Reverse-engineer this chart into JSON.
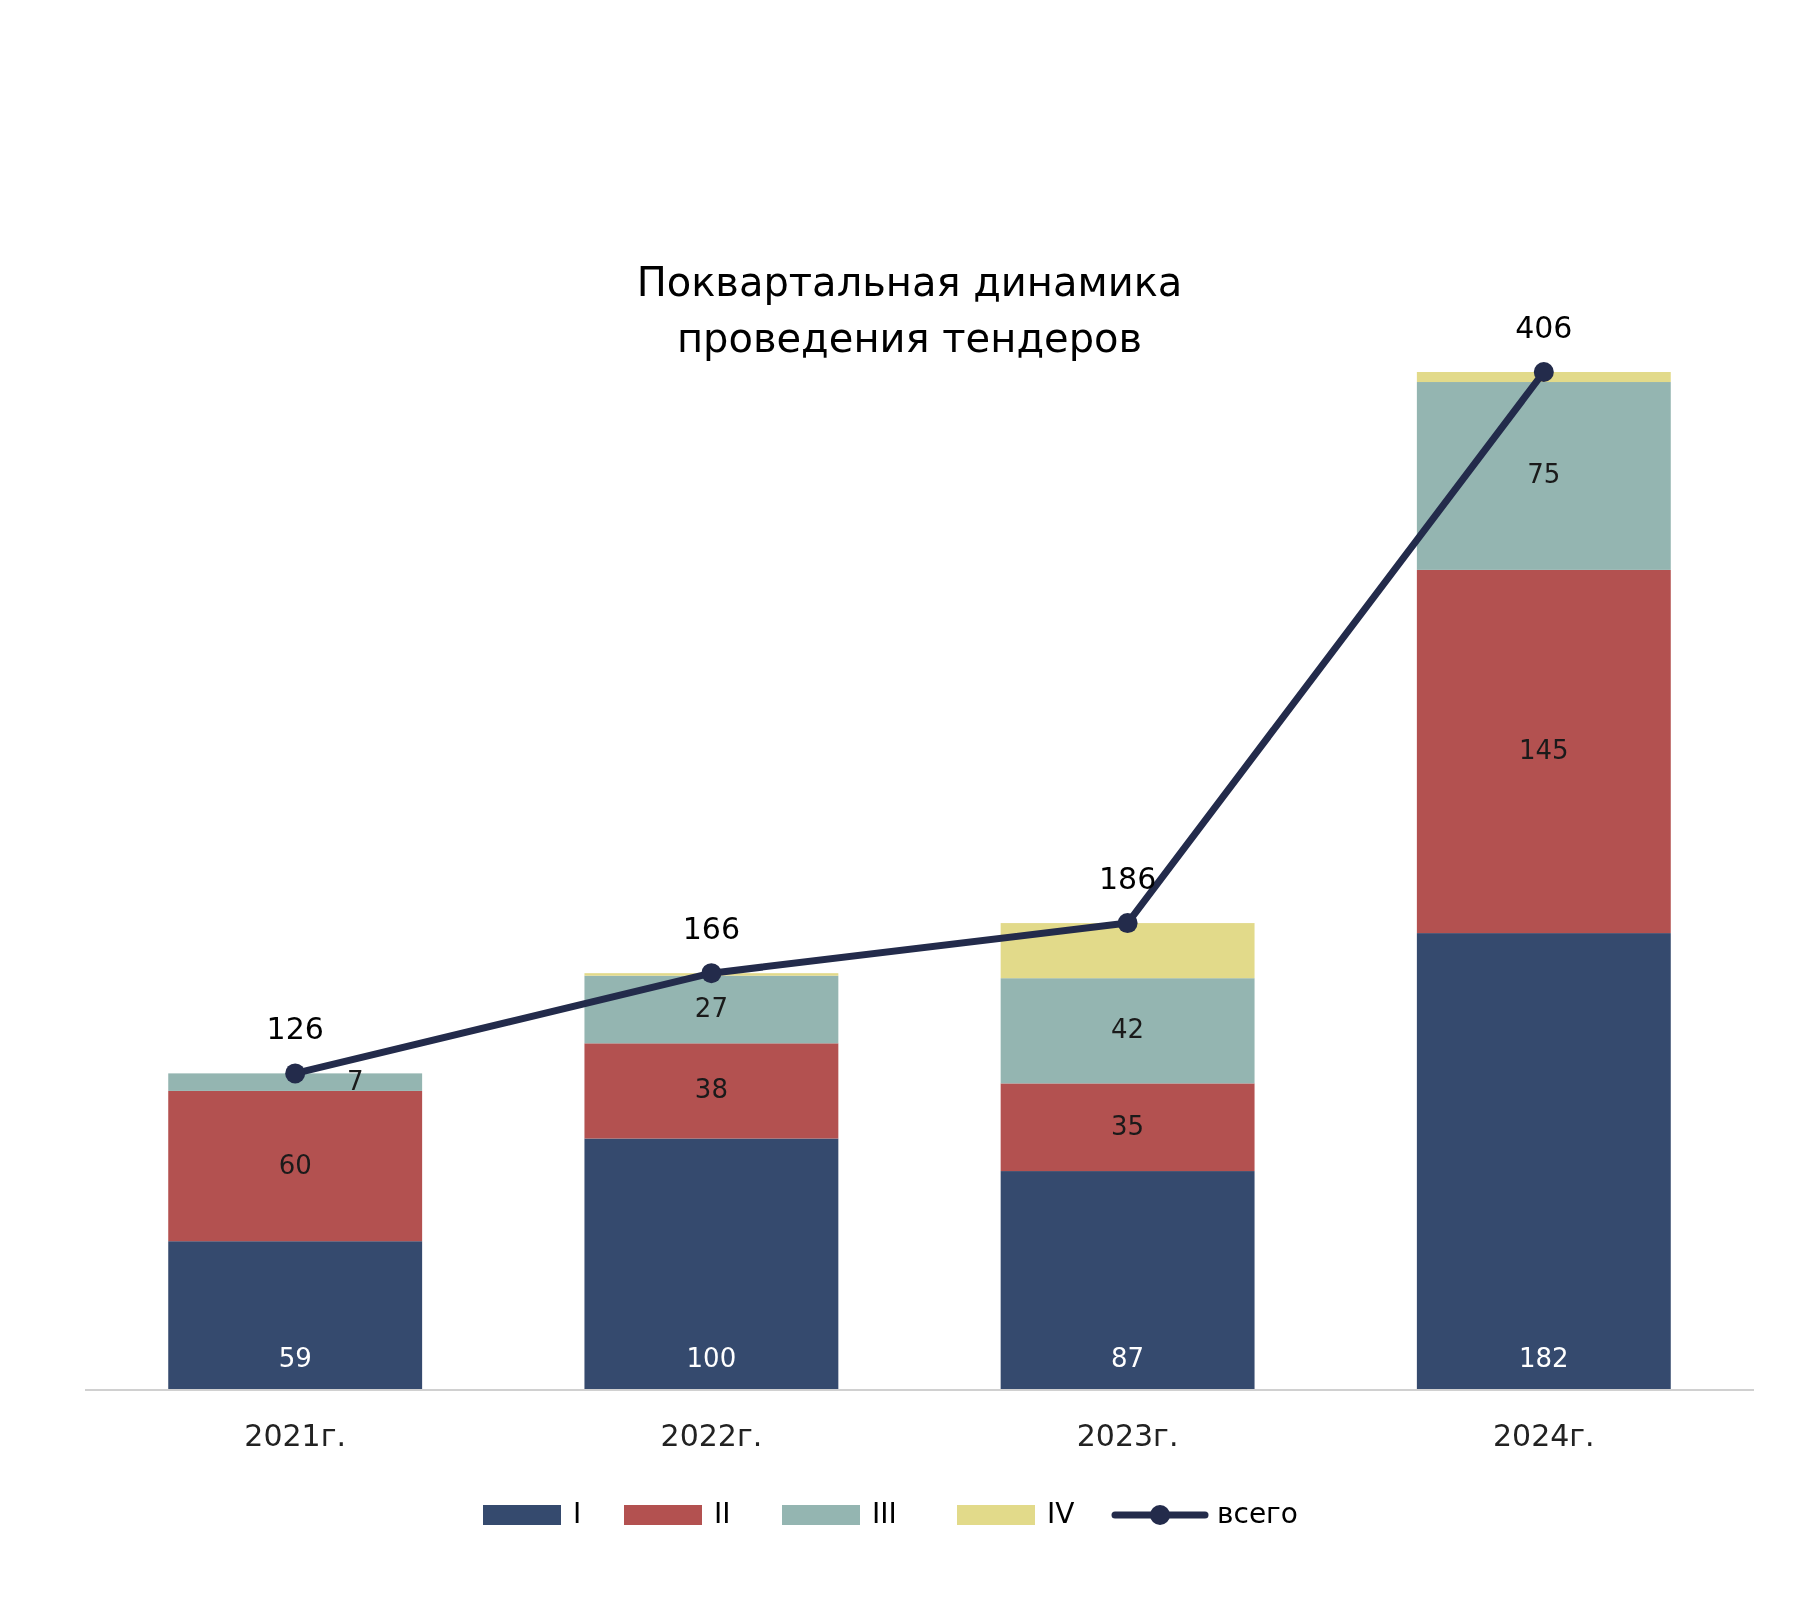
{
  "chart_data": {
    "type": "bar",
    "title": "Поквартальная динамика проведения тендеров",
    "categories": [
      "2021г.",
      "2022г.",
      "2023г.",
      "2024г."
    ],
    "stacked": true,
    "legend": "bottom",
    "marker": "circle",
    "series": [
      {
        "name": "I",
        "color": "#354a6e",
        "values": [
          59,
          100,
          87,
          182
        ],
        "value_labels": [
          "59",
          "100",
          "87",
          "182"
        ]
      },
      {
        "name": "II",
        "color": "#b35150",
        "values": [
          60,
          38,
          35,
          145
        ],
        "value_labels": [
          "60",
          "38",
          "35",
          "145"
        ]
      },
      {
        "name": "III",
        "color": "#94b5b1",
        "values": [
          7,
          27,
          42,
          75
        ],
        "value_labels": [
          "7",
          "27",
          "42",
          "75"
        ]
      },
      {
        "name": "IV",
        "color": "#e2da8a",
        "values": [
          0,
          1,
          22,
          4
        ],
        "value_labels": [
          null,
          null,
          null,
          null
        ]
      },
      {
        "name": "всего",
        "type": "line",
        "color": "#232b4b",
        "values": [
          126,
          166,
          186,
          406
        ],
        "value_labels": [
          "126",
          "166",
          "186",
          "406"
        ]
      }
    ]
  }
}
